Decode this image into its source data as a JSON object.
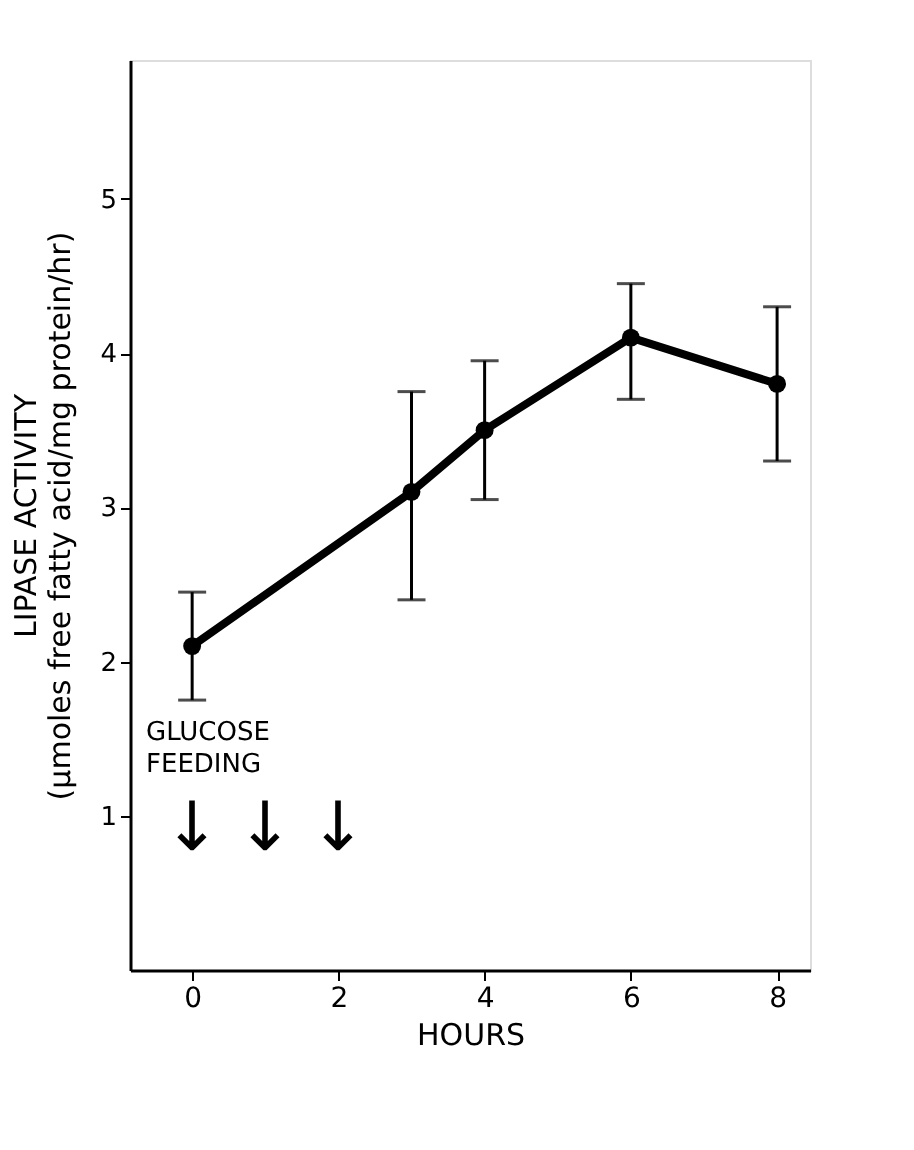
{
  "chart_data": {
    "type": "line",
    "xlabel": "HOURS",
    "ylabel": "LIPASE ACTIVITY\n(μmoles free fatty acid/mg protein/hr)",
    "x": [
      0,
      3,
      4,
      6,
      8
    ],
    "series": [
      {
        "color": "#000000",
        "values": [
          2.1,
          3.1,
          3.5,
          4.1,
          3.8
        ],
        "errors": [
          [
            1.75,
            2.45
          ],
          [
            2.4,
            3.75
          ],
          [
            3.05,
            3.95
          ],
          [
            3.7,
            4.45
          ],
          [
            3.3,
            4.3
          ]
        ]
      }
    ],
    "marker": "circle",
    "line_style": "solid",
    "grid": false,
    "xlim": [
      -0.85,
      8.45
    ],
    "xticks": [
      0,
      2,
      4,
      6,
      8
    ],
    "ylim": [
      0,
      5.9
    ],
    "yticks": [
      1,
      2,
      3,
      4,
      5
    ],
    "annotations": [
      "GLUCOSE\nFEEDING",
      "↓",
      "↓",
      "↓"
    ]
  }
}
